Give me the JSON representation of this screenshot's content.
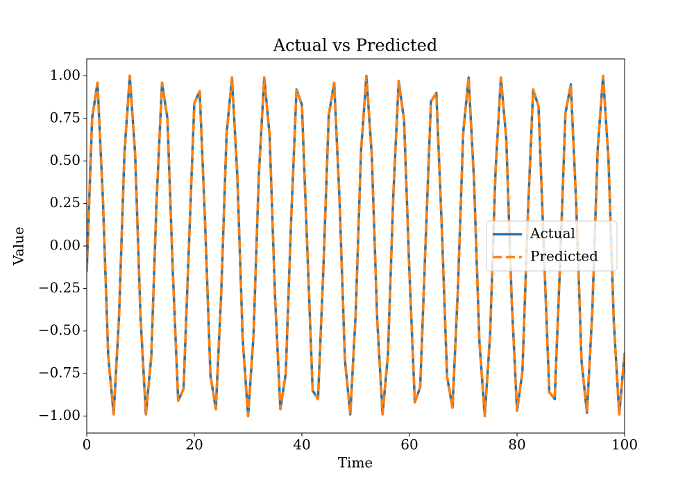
{
  "chart_data": {
    "type": "line",
    "title": "Actual vs Predicted",
    "xlabel": "Time",
    "ylabel": "Value",
    "x": [
      0,
      1,
      2,
      3,
      4,
      5,
      6,
      7,
      8,
      9,
      10,
      11,
      12,
      13,
      14,
      15,
      16,
      17,
      18,
      19,
      20,
      21,
      22,
      23,
      24,
      25,
      26,
      27,
      28,
      29,
      30,
      31,
      32,
      33,
      34,
      35,
      36,
      37,
      38,
      39,
      40,
      41,
      42,
      43,
      44,
      45,
      46,
      47,
      48,
      49,
      50,
      51,
      52,
      53,
      54,
      55,
      56,
      57,
      58,
      59,
      60,
      61,
      62,
      63,
      64,
      65,
      66,
      67,
      68,
      69,
      70,
      71,
      72,
      73,
      74,
      75,
      76,
      77,
      78,
      79,
      80,
      81,
      82,
      83,
      84,
      85,
      86,
      87,
      88,
      89,
      90,
      91,
      92,
      93,
      94,
      95,
      96,
      97,
      98,
      99,
      100
    ],
    "series": [
      {
        "name": "Actual",
        "color": "#1f77b4",
        "dash": false,
        "values": [
          -0.15,
          0.75,
          0.96,
          0.28,
          -0.65,
          -0.99,
          -0.42,
          0.54,
          1.0,
          0.54,
          -0.42,
          -0.99,
          -0.65,
          0.28,
          0.96,
          0.75,
          -0.15,
          -0.91,
          -0.84,
          0.0,
          0.84,
          0.91,
          0.14,
          -0.76,
          -0.96,
          -0.28,
          0.66,
          0.99,
          0.41,
          -0.55,
          -1.0,
          -0.53,
          0.42,
          0.99,
          0.65,
          -0.29,
          -0.96,
          -0.75,
          0.15,
          0.92,
          0.83,
          -0.01,
          -0.85,
          -0.9,
          -0.13,
          0.77,
          0.96,
          0.27,
          -0.67,
          -0.99,
          -0.4,
          0.56,
          1.0,
          0.53,
          -0.43,
          -0.99,
          -0.64,
          0.3,
          0.97,
          0.74,
          -0.16,
          -0.92,
          -0.83,
          0.02,
          0.85,
          0.9,
          0.12,
          -0.77,
          -0.95,
          -0.26,
          0.67,
          0.99,
          0.39,
          -0.56,
          -1.0,
          -0.52,
          0.44,
          0.99,
          0.63,
          -0.31,
          -0.97,
          -0.74,
          0.17,
          0.92,
          0.82,
          -0.03,
          -0.86,
          -0.9,
          -0.11,
          0.78,
          0.95,
          0.25,
          -0.68,
          -0.98,
          -0.38,
          0.57,
          1.0,
          0.51,
          -0.45,
          -0.99,
          -0.63
        ]
      },
      {
        "name": "Predicted",
        "color": "#ff7f0e",
        "dash": true,
        "values": [
          -0.15,
          0.75,
          0.96,
          0.28,
          -0.65,
          -0.99,
          -0.42,
          0.54,
          1.0,
          0.54,
          -0.42,
          -0.99,
          -0.65,
          0.28,
          0.96,
          0.75,
          -0.15,
          -0.91,
          -0.84,
          0.0,
          0.84,
          0.91,
          0.14,
          -0.76,
          -0.96,
          -0.28,
          0.66,
          0.99,
          0.41,
          -0.55,
          -1.0,
          -0.53,
          0.42,
          0.99,
          0.65,
          -0.29,
          -0.96,
          -0.75,
          0.15,
          0.92,
          0.83,
          -0.01,
          -0.85,
          -0.9,
          -0.13,
          0.77,
          0.96,
          0.27,
          -0.67,
          -0.99,
          -0.4,
          0.56,
          1.0,
          0.53,
          -0.43,
          -0.99,
          -0.64,
          0.3,
          0.97,
          0.74,
          -0.16,
          -0.92,
          -0.83,
          0.02,
          0.85,
          0.9,
          0.12,
          -0.77,
          -0.95,
          -0.26,
          0.67,
          0.99,
          0.39,
          -0.56,
          -1.0,
          -0.52,
          0.44,
          0.99,
          0.63,
          -0.31,
          -0.97,
          -0.74,
          0.17,
          0.92,
          0.82,
          -0.03,
          -0.86,
          -0.9,
          -0.11,
          0.78,
          0.95,
          0.25,
          -0.68,
          -0.98,
          -0.38,
          0.57,
          1.0,
          0.51,
          -0.45,
          -0.99,
          -0.63
        ]
      }
    ],
    "xlim": [
      0,
      100
    ],
    "xticks": [
      0,
      20,
      40,
      60,
      80,
      100
    ],
    "ylim": [
      -1.1,
      1.1
    ],
    "yticks": [
      {
        "value": -1,
        "label": "−1.00"
      },
      {
        "value": -0.75,
        "label": "−0.75"
      },
      {
        "value": -0.5,
        "label": "−0.50"
      },
      {
        "value": -0.25,
        "label": "−0.25"
      },
      {
        "value": 0,
        "label": "0.00"
      },
      {
        "value": 0.25,
        "label": "0.25"
      },
      {
        "value": 0.5,
        "label": "0.50"
      },
      {
        "value": 0.75,
        "label": "0.75"
      },
      {
        "value": 1,
        "label": "1.00"
      }
    ],
    "grid": false,
    "legend": "center right"
  }
}
